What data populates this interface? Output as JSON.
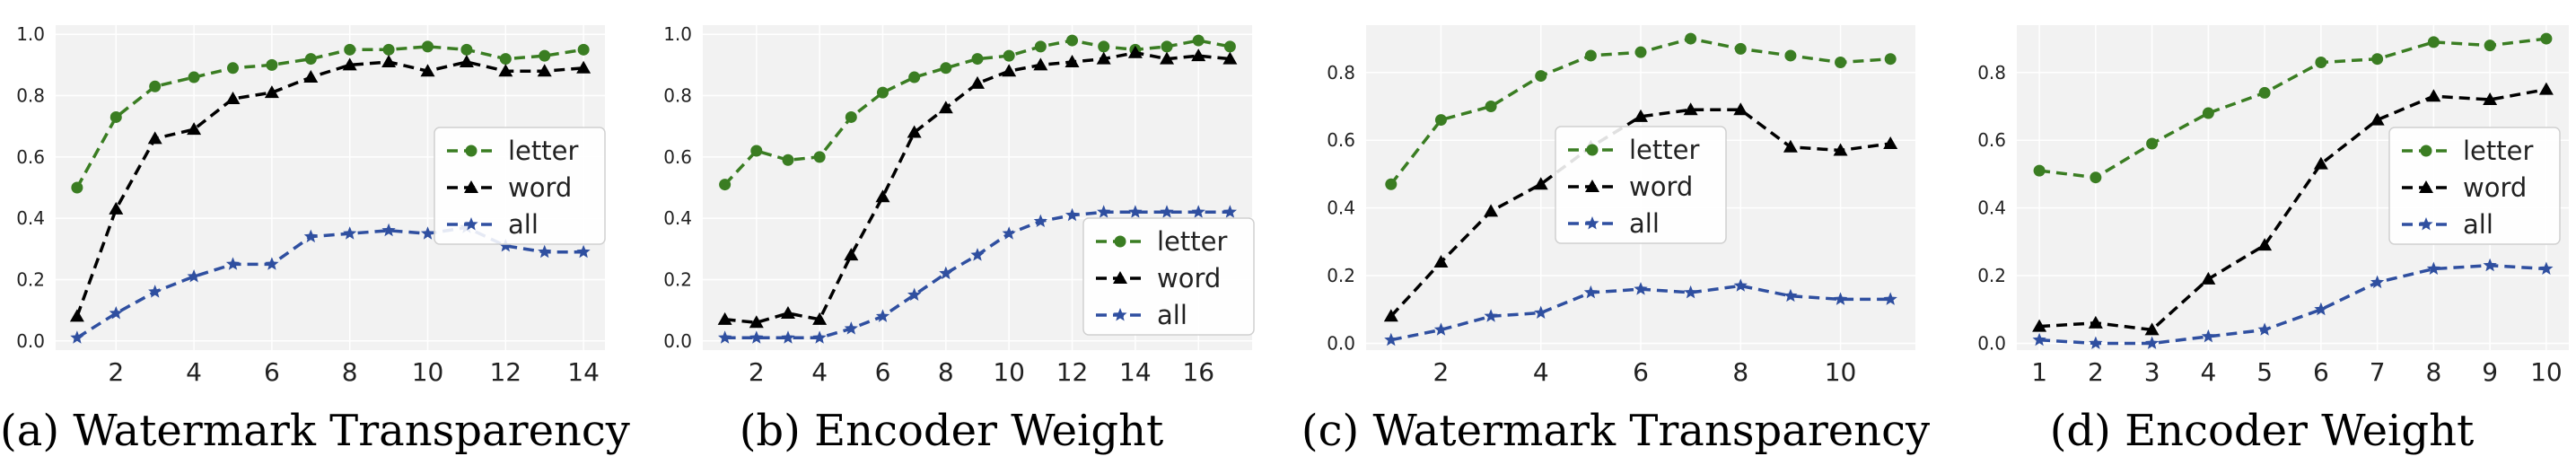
{
  "colors": {
    "letter": "#3a7d22",
    "word": "#000000",
    "all": "#2f4fa0",
    "panel_bg": "#f2f2f2",
    "grid": "#ffffff"
  },
  "legend_labels": [
    "letter",
    "word",
    "all"
  ],
  "chart_data": [
    {
      "type": "line",
      "caption": "(a) Watermark Transparency",
      "x": [
        1,
        2,
        3,
        4,
        5,
        6,
        7,
        8,
        9,
        10,
        11,
        12,
        13,
        14
      ],
      "xticks": [
        2,
        4,
        6,
        8,
        10,
        12,
        14
      ],
      "yticks": [
        0.0,
        0.2,
        0.4,
        0.6,
        0.8,
        1.0
      ],
      "xlim": [
        0.45,
        14.55
      ],
      "ylim": [
        -0.03,
        1.03
      ],
      "grid": true,
      "legend_position": "center-right",
      "series": [
        {
          "name": "letter",
          "marker": "circle",
          "values": [
            0.5,
            0.73,
            0.83,
            0.86,
            0.89,
            0.9,
            0.92,
            0.95,
            0.95,
            0.96,
            0.95,
            0.92,
            0.93,
            0.95
          ]
        },
        {
          "name": "word",
          "marker": "triangle",
          "values": [
            0.08,
            0.43,
            0.66,
            0.69,
            0.79,
            0.81,
            0.86,
            0.9,
            0.91,
            0.88,
            0.91,
            0.88,
            0.88,
            0.89
          ]
        },
        {
          "name": "all",
          "marker": "star",
          "values": [
            0.01,
            0.09,
            0.16,
            0.21,
            0.25,
            0.25,
            0.34,
            0.35,
            0.36,
            0.35,
            0.37,
            0.31,
            0.29,
            0.29
          ]
        }
      ]
    },
    {
      "type": "line",
      "caption": "(b) Encoder Weight",
      "x": [
        1,
        2,
        3,
        4,
        5,
        6,
        7,
        8,
        9,
        10,
        11,
        12,
        13,
        14,
        15,
        16,
        17
      ],
      "xticks": [
        2,
        4,
        6,
        8,
        10,
        12,
        14,
        16
      ],
      "yticks": [
        0.0,
        0.2,
        0.4,
        0.6,
        0.8,
        1.0
      ],
      "xlim": [
        0.3,
        17.7
      ],
      "ylim": [
        -0.03,
        1.03
      ],
      "grid": true,
      "legend_position": "lower-right",
      "series": [
        {
          "name": "letter",
          "marker": "circle",
          "values": [
            0.51,
            0.62,
            0.59,
            0.6,
            0.73,
            0.81,
            0.86,
            0.89,
            0.92,
            0.93,
            0.96,
            0.98,
            0.96,
            0.95,
            0.96,
            0.98,
            0.96
          ]
        },
        {
          "name": "word",
          "marker": "triangle",
          "values": [
            0.07,
            0.06,
            0.09,
            0.07,
            0.28,
            0.47,
            0.68,
            0.76,
            0.84,
            0.88,
            0.9,
            0.91,
            0.92,
            0.94,
            0.92,
            0.93,
            0.92
          ]
        },
        {
          "name": "all",
          "marker": "star",
          "values": [
            0.01,
            0.01,
            0.01,
            0.01,
            0.04,
            0.08,
            0.15,
            0.22,
            0.28,
            0.35,
            0.39,
            0.41,
            0.42,
            0.42,
            0.42,
            0.42,
            0.42
          ]
        }
      ]
    },
    {
      "type": "line",
      "caption": "(c) Watermark Transparency",
      "x": [
        1,
        2,
        3,
        4,
        5,
        6,
        7,
        8,
        9,
        10,
        11
      ],
      "xticks": [
        2,
        4,
        6,
        8,
        10
      ],
      "yticks": [
        0.0,
        0.2,
        0.4,
        0.6,
        0.8
      ],
      "xlim": [
        0.5,
        11.5
      ],
      "ylim": [
        -0.02,
        0.94
      ],
      "grid": true,
      "legend_position": "center",
      "series": [
        {
          "name": "letter",
          "marker": "circle",
          "values": [
            0.47,
            0.66,
            0.7,
            0.79,
            0.85,
            0.86,
            0.9,
            0.87,
            0.85,
            0.83,
            0.84
          ]
        },
        {
          "name": "word",
          "marker": "triangle",
          "values": [
            0.08,
            0.24,
            0.39,
            0.47,
            0.58,
            0.67,
            0.69,
            0.69,
            0.58,
            0.57,
            0.59
          ]
        },
        {
          "name": "all",
          "marker": "star",
          "values": [
            0.01,
            0.04,
            0.08,
            0.09,
            0.15,
            0.16,
            0.15,
            0.17,
            0.14,
            0.13,
            0.13
          ]
        }
      ]
    },
    {
      "type": "line",
      "caption": "(d) Encoder Weight",
      "x": [
        1,
        2,
        3,
        4,
        5,
        6,
        7,
        8,
        9,
        10
      ],
      "xticks": [
        1,
        2,
        3,
        4,
        5,
        6,
        7,
        8,
        9,
        10
      ],
      "yticks": [
        0.0,
        0.2,
        0.4,
        0.6,
        0.8
      ],
      "xlim": [
        0.6,
        10.4
      ],
      "ylim": [
        -0.02,
        0.94
      ],
      "grid": true,
      "legend_position": "center-right",
      "series": [
        {
          "name": "letter",
          "marker": "circle",
          "values": [
            0.51,
            0.49,
            0.59,
            0.68,
            0.74,
            0.83,
            0.84,
            0.89,
            0.88,
            0.9
          ]
        },
        {
          "name": "word",
          "marker": "triangle",
          "values": [
            0.05,
            0.06,
            0.04,
            0.19,
            0.29,
            0.53,
            0.66,
            0.73,
            0.72,
            0.75
          ]
        },
        {
          "name": "all",
          "marker": "star",
          "values": [
            0.01,
            0.0,
            0.0,
            0.02,
            0.04,
            0.1,
            0.18,
            0.22,
            0.23,
            0.22
          ]
        }
      ]
    }
  ]
}
